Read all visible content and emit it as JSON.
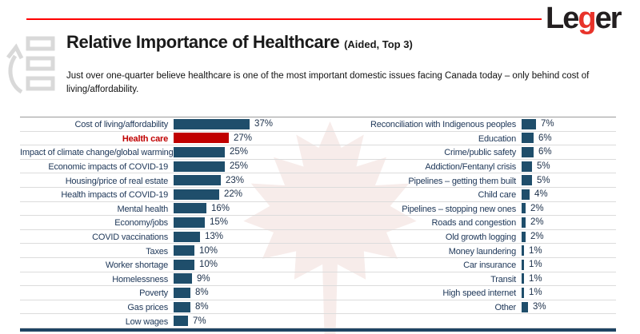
{
  "logo": {
    "pre": "Le",
    "accent": "g",
    "post": "er",
    "accent_color": "#e8332a"
  },
  "header": {
    "title": "Relative Importance of Healthcare",
    "title_suffix": "(Aided, Top 3)",
    "subtitle_line1": "Just over one-quarter believe healthcare is one of the most important domestic issues facing Canada today – only behind cost of",
    "subtitle_line2": "living/affordability."
  },
  "colors": {
    "bar": "#1f4e6b",
    "highlight": "#c00000",
    "top_rule": "#ff0000",
    "row_separator": "#dcdcdc",
    "footer": "#1f4463",
    "label": "#20395a",
    "watermark": "#f7ecea"
  },
  "chart_data": {
    "type": "bar",
    "orientation": "horizontal",
    "title": "Relative Importance of Healthcare (Aided, Top 3)",
    "value_suffix": "%",
    "xlim": [
      0,
      40
    ],
    "grid": "row-separators",
    "bar_color": "#1f4e6b",
    "highlight_color": "#c00000",
    "columns": [
      {
        "items": [
          {
            "label": "Cost of living/affordability",
            "value": 37
          },
          {
            "label": "Health care",
            "value": 27,
            "highlight": true
          },
          {
            "label": "Impact of climate change/global warming",
            "value": 25
          },
          {
            "label": "Economic impacts of COVID-19",
            "value": 25
          },
          {
            "label": "Housing/price of real estate",
            "value": 23
          },
          {
            "label": "Health impacts of COVID-19",
            "value": 22
          },
          {
            "label": "Mental health",
            "value": 16
          },
          {
            "label": "Economy/jobs",
            "value": 15
          },
          {
            "label": "COVID vaccinations",
            "value": 13
          },
          {
            "label": "Taxes",
            "value": 10
          },
          {
            "label": "Worker shortage",
            "value": 10
          },
          {
            "label": "Homelessness",
            "value": 9
          },
          {
            "label": "Poverty",
            "value": 8
          },
          {
            "label": "Gas prices",
            "value": 8
          },
          {
            "label": "Low wages",
            "value": 7
          }
        ]
      },
      {
        "items": [
          {
            "label": "Reconciliation with Indigenous peoples",
            "value": 7
          },
          {
            "label": "Education",
            "value": 6
          },
          {
            "label": "Crime/public safety",
            "value": 6
          },
          {
            "label": "Addiction/Fentanyl crisis",
            "value": 5
          },
          {
            "label": "Pipelines – getting them built",
            "value": 5
          },
          {
            "label": "Child care",
            "value": 4
          },
          {
            "label": "Pipelines – stopping new ones",
            "value": 2
          },
          {
            "label": "Roads and congestion",
            "value": 2
          },
          {
            "label": "Old growth logging",
            "value": 2
          },
          {
            "label": "Money laundering",
            "value": 1
          },
          {
            "label": "Car insurance",
            "value": 1
          },
          {
            "label": "Transit",
            "value": 1
          },
          {
            "label": "High speed internet",
            "value": 1
          },
          {
            "label": "Other",
            "value": 3
          }
        ]
      }
    ]
  }
}
